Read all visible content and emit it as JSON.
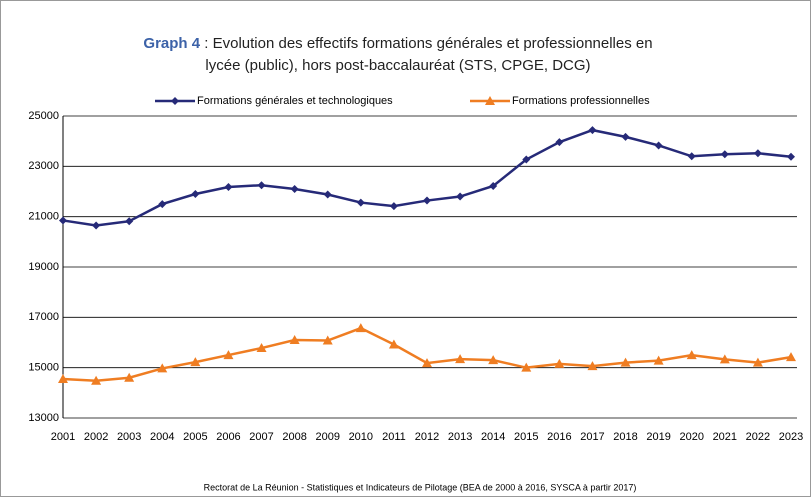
{
  "chart_data": {
    "type": "line",
    "title": [
      "Graph 4",
      " : Evolution des effectifs formations générales et professionnelles en",
      "lycée (public), hors post-baccalauréat (STS, CPGE, DCG)"
    ],
    "source": "Rectorat de La Réunion - Statistiques et Indicateurs de Pilotage (BEA de 2000 à 2016, SYSCA à partir 2017)",
    "categories": [
      "2001",
      "2002",
      "2003",
      "2004",
      "2005",
      "2006",
      "2007",
      "2008",
      "2009",
      "2010",
      "2011",
      "2012",
      "2013",
      "2014",
      "2015",
      "2016",
      "2017",
      "2018",
      "2019",
      "2020",
      "2021",
      "2022",
      "2023"
    ],
    "series": [
      {
        "name": "Formations générales et technologiques",
        "color": "#262a78",
        "marker": "diamond",
        "values": [
          20850,
          20650,
          20820,
          21500,
          21900,
          22180,
          22250,
          22100,
          21880,
          21560,
          21420,
          21640,
          21800,
          22220,
          23270,
          23960,
          24440,
          24170,
          23830,
          23400,
          23480,
          23520,
          23380
        ]
      },
      {
        "name": "Formations professionnelles",
        "color": "#ef7d22",
        "marker": "triangle",
        "values": [
          14550,
          14480,
          14600,
          14970,
          15220,
          15500,
          15780,
          16100,
          16080,
          16570,
          15920,
          15180,
          15340,
          15300,
          15000,
          15150,
          15060,
          15200,
          15280,
          15500,
          15330,
          15200,
          15420
        ]
      }
    ],
    "ylim": [
      13000,
      25000
    ],
    "yticks": [
      13000,
      15000,
      17000,
      19000,
      21000,
      23000,
      25000
    ],
    "grid": true,
    "legend": "top"
  }
}
